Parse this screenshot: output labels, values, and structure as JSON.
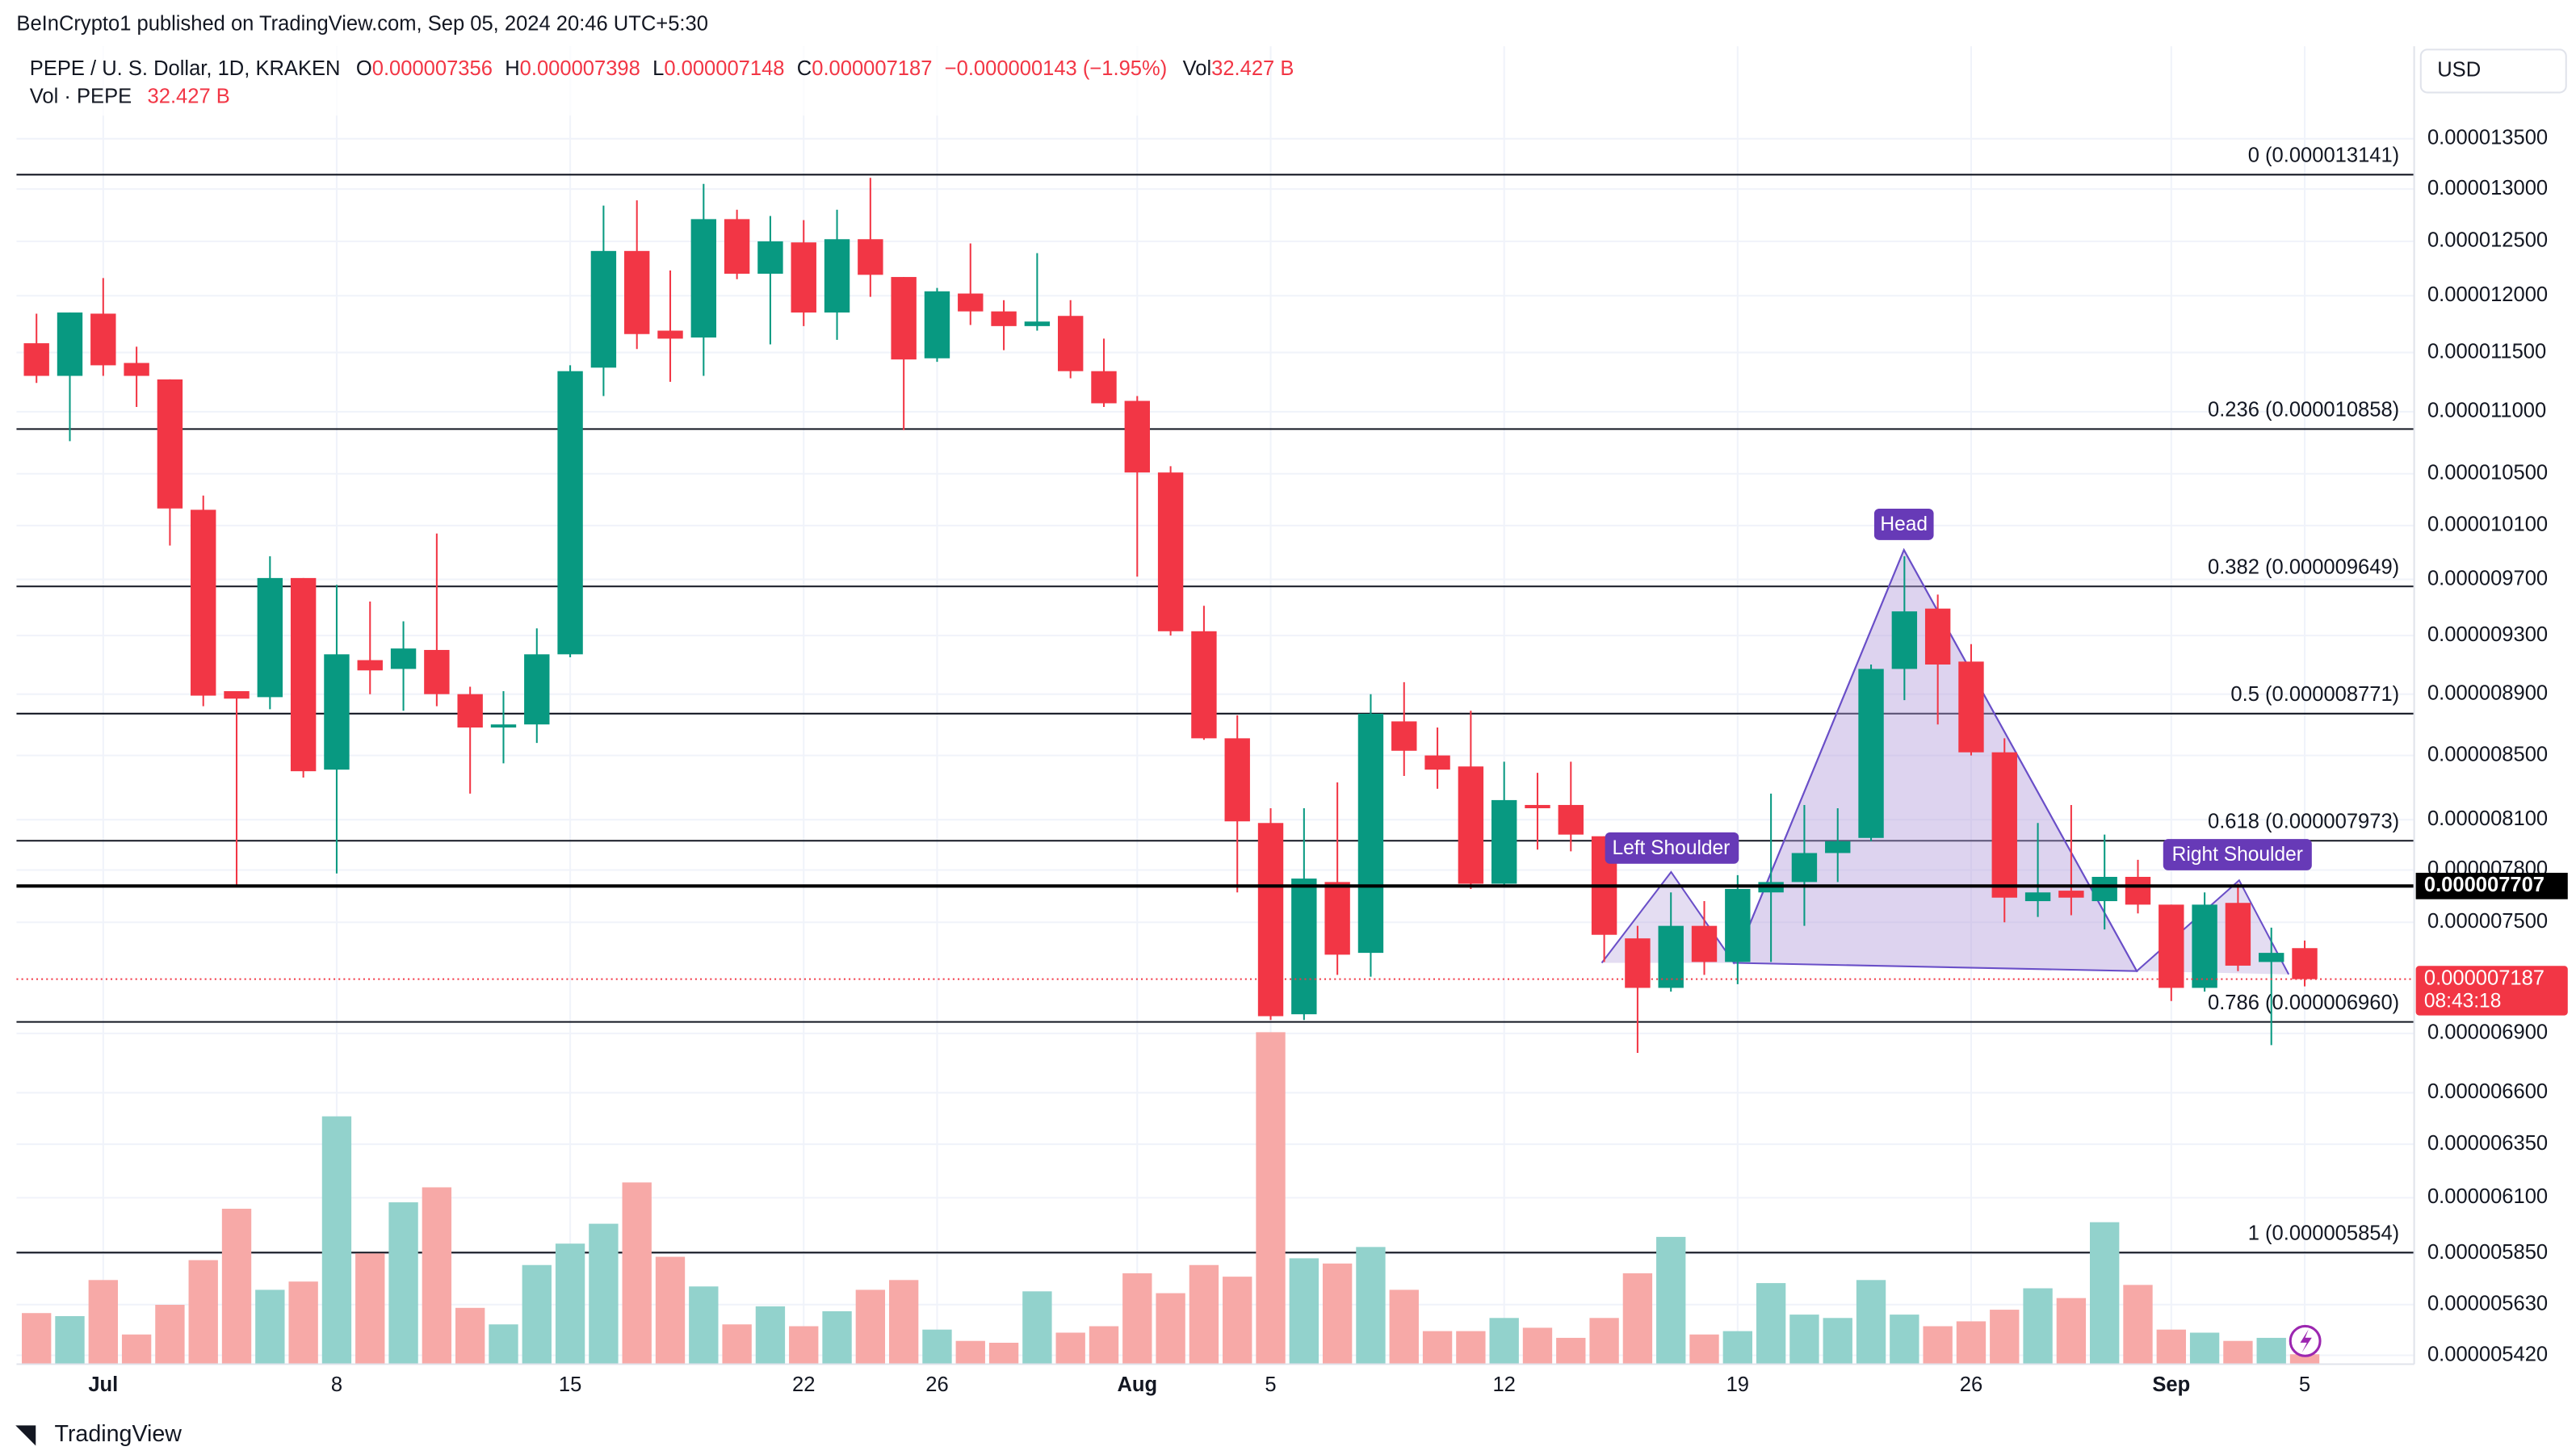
{
  "publisher": "BeInCrypto1 published on TradingView.com, Sep 05, 2024 20:46 UTC+5:30",
  "footer": "TradingView",
  "chart_data": {
    "type": "candlestick",
    "log": true,
    "grid": true,
    "currency": "USD",
    "header": {
      "symbol": "PEPE / U. S. Dollar, 1D, KRAKEN",
      "o_key": "O",
      "o": "0.000007356",
      "h_key": "H",
      "h": "0.000007398",
      "l_key": "L",
      "l": "0.000007148",
      "c_key": "C",
      "c": "0.000007187",
      "change": "−0.000000143 (−1.95%)",
      "vol_key": "Vol",
      "vol": "32.427 B",
      "vol_series": "Vol · PEPE",
      "vol_series_value": "32.427 B"
    },
    "up_color": "#089981",
    "down_color": "#f23645",
    "volume_up_color": "#92d2cc",
    "volume_down_color": "#f7a9a7",
    "categories": [
      null,
      null,
      "Jul",
      null,
      null,
      null,
      null,
      null,
      null,
      "8",
      null,
      null,
      null,
      null,
      null,
      null,
      "15",
      null,
      null,
      null,
      null,
      null,
      null,
      "22",
      null,
      null,
      null,
      "26",
      null,
      null,
      null,
      null,
      null,
      "Aug",
      null,
      null,
      null,
      "5",
      null,
      null,
      null,
      null,
      null,
      null,
      "12",
      null,
      null,
      null,
      null,
      null,
      null,
      "19",
      null,
      null,
      null,
      null,
      null,
      null,
      "26",
      null,
      null,
      null,
      null,
      null,
      "Sep",
      null,
      null,
      null,
      "5"
    ],
    "open": [
      1.158e-05,
      1.13e-05,
      1.184e-05,
      1.141e-05,
      1.127e-05,
      1.022e-05,
      8.92e-06,
      8.88e-06,
      9.71e-06,
      8.41e-06,
      9.13e-06,
      9.07e-06,
      9.2e-06,
      8.9e-06,
      8.68e-06,
      8.7e-06,
      9.17e-06,
      1.137e-05,
      1.241e-05,
      1.169e-05,
      1.163e-05,
      1.271e-05,
      1.22e-05,
      1.249e-05,
      1.185e-05,
      1.252e-05,
      1.217e-05,
      1.145e-05,
      1.202e-05,
      1.186e-05,
      1.173e-05,
      1.182e-05,
      1.134e-05,
      1.109e-05,
      1.051e-05,
      9.33e-06,
      8.61e-06,
      8.08e-06,
      7e-06,
      7.73e-06,
      7.33e-06,
      8.72e-06,
      8.5e-06,
      8.43e-06,
      7.72e-06,
      8.19e-06,
      8.19e-06,
      8e-06,
      7.41e-06,
      7.14e-06,
      7.48e-06,
      7.28e-06,
      7.67e-06,
      7.73e-06,
      7.9e-06,
      7.99e-06,
      9.07e-06,
      9.49e-06,
      9.12e-06,
      8.52e-06,
      7.62e-06,
      7.68e-06,
      7.62e-06,
      7.76e-06,
      7.6e-06,
      7.14e-06,
      7.61e-06,
      7.28e-06,
      7.356e-06
    ],
    "high": [
      1.184e-05,
      1.185e-05,
      1.216e-05,
      1.155e-05,
      1.127e-05,
      1.033e-05,
      8.92e-06,
      9.87e-06,
      9.71e-06,
      9.66e-06,
      9.54e-06,
      9.4e-06,
      1.004e-05,
      8.95e-06,
      8.92e-06,
      9.35e-06,
      1.139e-05,
      1.284e-05,
      1.289e-05,
      1.223e-05,
      1.305e-05,
      1.28e-05,
      1.274e-05,
      1.27e-05,
      1.28e-05,
      1.311e-05,
      1.217e-05,
      1.207e-05,
      1.248e-05,
      1.196e-05,
      1.239e-05,
      1.196e-05,
      1.162e-05,
      1.113e-05,
      1.056e-05,
      9.51e-06,
      8.76e-06,
      8.17e-06,
      8.17e-06,
      8.33e-06,
      8.9e-06,
      8.98e-06,
      8.68e-06,
      8.79e-06,
      8.46e-06,
      8.39e-06,
      8.46e-06,
      8e-06,
      7.48e-06,
      7.67e-06,
      7.62e-06,
      7.77e-06,
      8.26e-06,
      8.19e-06,
      8.17e-06,
      9.1e-06,
      9.87e-06,
      9.59e-06,
      9.24e-06,
      8.61e-06,
      8.08e-06,
      8.19e-06,
      8.01e-06,
      7.86e-06,
      7.6e-06,
      7.67e-06,
      7.72e-06,
      7.47e-06,
      7.398e-06
    ],
    "low": [
      1.124e-05,
      1.076e-05,
      1.13e-05,
      1.104e-05,
      9.95e-06,
      8.82e-06,
      7.71e-06,
      8.8e-06,
      8.36e-06,
      7.78e-06,
      8.9e-06,
      8.79e-06,
      8.82e-06,
      8.26e-06,
      8.45e-06,
      8.58e-06,
      9.15e-06,
      1.113e-05,
      1.153e-05,
      1.125e-05,
      1.13e-05,
      1.215e-05,
      1.157e-05,
      1.173e-05,
      1.161e-05,
      1.199e-05,
      1.085e-05,
      1.142e-05,
      1.174e-05,
      1.152e-05,
      1.169e-05,
      1.128e-05,
      1.104e-05,
      9.72e-06,
      9.3e-06,
      8.6e-06,
      7.67e-06,
      6.97e-06,
      6.97e-06,
      7.21e-06,
      7.2e-06,
      8.37e-06,
      8.29e-06,
      7.69e-06,
      7.71e-06,
      7.92e-06,
      7.91e-06,
      7.28e-06,
      6.8e-06,
      7.12e-06,
      7.21e-06,
      7.16e-06,
      7.28e-06,
      7.48e-06,
      7.73e-06,
      7.97e-06,
      8.86e-06,
      8.7e-06,
      8.5e-06,
      7.5e-06,
      7.53e-06,
      7.54e-06,
      7.46e-06,
      7.55e-06,
      7.07e-06,
      7.12e-06,
      7.23e-06,
      6.84e-06,
      7.148e-06
    ],
    "close": [
      1.13e-05,
      1.185e-05,
      1.139e-05,
      1.13e-05,
      1.023e-05,
      8.89e-06,
      8.87e-06,
      9.71e-06,
      8.4e-06,
      9.17e-06,
      9.06e-06,
      9.21e-06,
      8.9e-06,
      8.68e-06,
      8.7e-06,
      9.17e-06,
      1.134e-05,
      1.241e-05,
      1.166e-05,
      1.162e-05,
      1.271e-05,
      1.22e-05,
      1.25e-05,
      1.185e-05,
      1.252e-05,
      1.219e-05,
      1.144e-05,
      1.204e-05,
      1.186e-05,
      1.173e-05,
      1.177e-05,
      1.134e-05,
      1.107e-05,
      1.051e-05,
      9.33e-06,
      8.61e-06,
      8.09e-06,
      6.99e-06,
      7.75e-06,
      7.32e-06,
      8.77e-06,
      8.53e-06,
      8.41e-06,
      7.72e-06,
      8.22e-06,
      8.17e-06,
      8.01e-06,
      7.43e-06,
      7.14e-06,
      7.48e-06,
      7.28e-06,
      7.69e-06,
      7.73e-06,
      7.9e-06,
      7.97e-06,
      9.07e-06,
      9.47e-06,
      9.1e-06,
      8.52e-06,
      7.64e-06,
      7.67e-06,
      7.64e-06,
      7.76e-06,
      7.6e-06,
      7.14e-06,
      7.6e-06,
      7.26e-06,
      7.33e-06,
      7.187e-06
    ],
    "volume": [
      167,
      157,
      275,
      97,
      194,
      340,
      508,
      243,
      270,
      810,
      362,
      529,
      578,
      184,
      130,
      324,
      394,
      459,
      594,
      351,
      254,
      130,
      189,
      124,
      173,
      243,
      275,
      113,
      76,
      70,
      238,
      103,
      124,
      297,
      232,
      324,
      286,
      1085,
      346,
      329,
      383,
      243,
      108,
      108,
      151,
      119,
      86,
      151,
      297,
      416,
      97,
      108,
      265,
      162,
      151,
      275,
      162,
      124,
      140,
      178,
      248,
      216,
      464,
      259,
      113,
      103,
      76,
      86,
      32.427
    ],
    "ylim": [
      5.384e-06,
      1.447e-05
    ],
    "yticks": [
      {
        "value": 1.35e-05,
        "label": "0.000013500"
      },
      {
        "value": 1.3e-05,
        "label": "0.000013000"
      },
      {
        "value": 1.25e-05,
        "label": "0.000012500"
      },
      {
        "value": 1.2e-05,
        "label": "0.000012000"
      },
      {
        "value": 1.15e-05,
        "label": "0.000011500"
      },
      {
        "value": 1.1e-05,
        "label": "0.000011000"
      },
      {
        "value": 1.05e-05,
        "label": "0.000010500"
      },
      {
        "value": 1.01e-05,
        "label": "0.000010100"
      },
      {
        "value": 9.7e-06,
        "label": "0.000009700"
      },
      {
        "value": 9.3e-06,
        "label": "0.000009300"
      },
      {
        "value": 8.9e-06,
        "label": "0.000008900"
      },
      {
        "value": 8.5e-06,
        "label": "0.000008500"
      },
      {
        "value": 8.1e-06,
        "label": "0.000008100"
      },
      {
        "value": 7.8e-06,
        "label": "0.000007800"
      },
      {
        "value": 7.5e-06,
        "label": "0.000007500"
      },
      {
        "value": 6.9e-06,
        "label": "0.000006900"
      },
      {
        "value": 6.6e-06,
        "label": "0.000006600"
      },
      {
        "value": 6.35e-06,
        "label": "0.000006350"
      },
      {
        "value": 6.1e-06,
        "label": "0.000006100"
      },
      {
        "value": 5.85e-06,
        "label": "0.000005850"
      },
      {
        "value": 5.63e-06,
        "label": "0.000005630"
      },
      {
        "value": 5.42e-06,
        "label": "0.000005420"
      }
    ],
    "fib_levels": [
      {
        "value": 1.3141e-05,
        "label": "0 (0.000013141)"
      },
      {
        "value": 1.0858e-05,
        "label": "0.236 (0.000010858)"
      },
      {
        "value": 9.649e-06,
        "label": "0.382 (0.000009649)"
      },
      {
        "value": 8.771e-06,
        "label": "0.5 (0.000008771)"
      },
      {
        "value": 7.973e-06,
        "label": "0.618 (0.000007973)"
      },
      {
        "value": 6.96e-06,
        "label": "0.786 (0.000006960)"
      },
      {
        "value": 5.854e-06,
        "label": "1 (0.000005854)"
      }
    ],
    "price_line": 7.707e-06,
    "last_price": 7.187e-06,
    "countdown": "08:43:18",
    "annotations": {
      "left": "Left Shoulder",
      "head": "Head",
      "right": "Right Shoulder"
    }
  }
}
